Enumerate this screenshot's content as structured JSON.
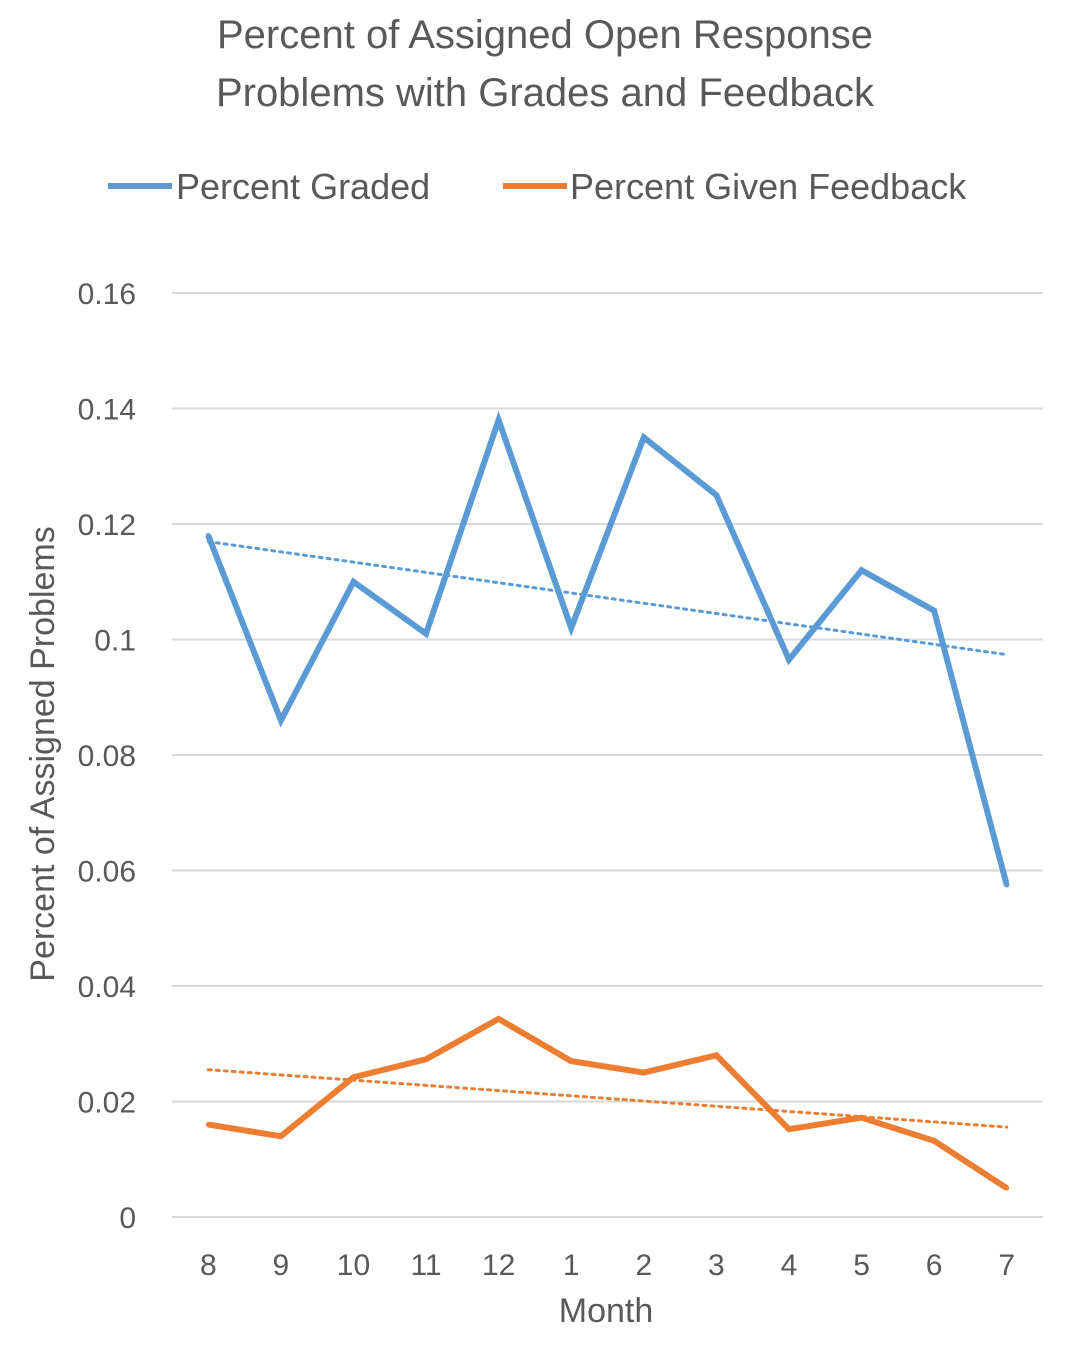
{
  "chart_data": {
    "type": "line",
    "title_lines": [
      "Percent of Assigned Open Response",
      "Problems with Grades and Feedback"
    ],
    "xlabel": "Month",
    "ylabel": "Percent of Assigned Problems",
    "categories": [
      "8",
      "9",
      "10",
      "11",
      "12",
      "1",
      "2",
      "3",
      "4",
      "5",
      "6",
      "7"
    ],
    "yticks": [
      "0",
      "0.02",
      "0.04",
      "0.06",
      "0.08",
      "0.1",
      "0.12",
      "0.14",
      "0.16"
    ],
    "ylim": [
      0,
      0.16
    ],
    "grid": true,
    "legend_position": "top",
    "series": [
      {
        "name": "Percent Graded",
        "color": "#5B9BD5",
        "values": [
          0.118,
          0.086,
          0.11,
          0.101,
          0.138,
          0.102,
          0.135,
          0.125,
          0.0965,
          0.112,
          0.105,
          0.0575
        ],
        "trendline": {
          "type": "linear",
          "style": "dotted"
        }
      },
      {
        "name": "Percent Given Feedback",
        "color": "#ED7D31",
        "values": [
          0.016,
          0.014,
          0.0242,
          0.0273,
          0.0343,
          0.027,
          0.025,
          0.028,
          0.0152,
          0.0172,
          0.0132,
          0.005
        ],
        "trendline": {
          "type": "linear",
          "style": "dotted"
        }
      }
    ]
  }
}
